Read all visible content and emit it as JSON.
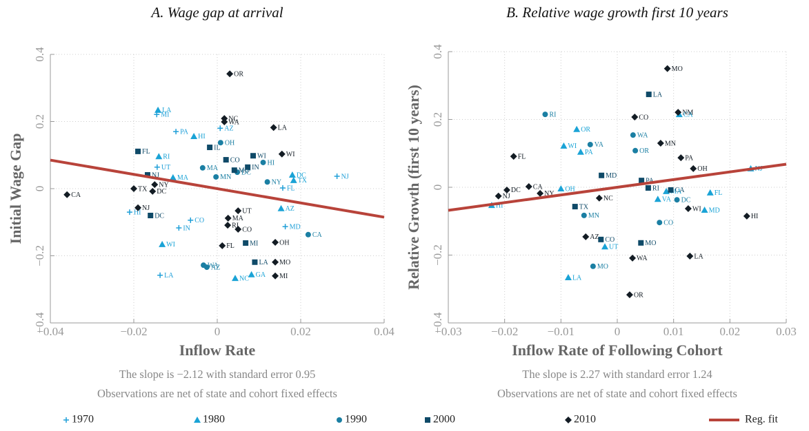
{
  "legend": [
    {
      "name": "1970",
      "color": "#1f9fd8",
      "marker": "plus"
    },
    {
      "name": "1980",
      "color": "#1aa3d6",
      "marker": "triangle"
    },
    {
      "name": "1990",
      "color": "#1b7fa3",
      "marker": "circle"
    },
    {
      "name": "2000",
      "color": "#0f4a68",
      "marker": "square"
    },
    {
      "name": "2010",
      "color": "#131c24",
      "marker": "diamond"
    },
    {
      "name": "Reg. fit",
      "color": "#b8433a",
      "marker": "line"
    }
  ],
  "chart_data": [
    {
      "type": "scatter",
      "title": "A. Wage gap at arrival",
      "xlabel": "Inflow Rate",
      "ylabel": "Initial Wage Gap",
      "notes": [
        "The slope is −2.12 with standard error 0.95",
        "Observations are net of state and cohort fixed effects"
      ],
      "xlim": [
        -0.04,
        0.04
      ],
      "ylim": [
        -0.4,
        0.4
      ],
      "xticks": [
        {
          "value": -0.04,
          "label": "−0.04"
        },
        {
          "value": -0.02,
          "label": "−0.02"
        },
        0,
        0.02,
        0.04
      ],
      "yticks": [
        {
          "value": -0.4,
          "label": "−0.4"
        },
        {
          "value": -0.2,
          "label": "−0.2"
        },
        0,
        0.2,
        0.4
      ],
      "grid": true,
      "series": [
        {
          "x": [
            -0.0145,
            -0.0099,
            0.0287,
            0.0157,
            0.0163,
            -0.0064,
            -0.0092,
            -0.0137,
            -0.021,
            -0.0144,
            0.0007
          ],
          "y": [
            0.221,
            0.17,
            0.037,
            0.002,
            -0.113,
            -0.094,
            -0.117,
            -0.258,
            -0.07,
            0.064,
            0.18
          ],
          "labels": [
            "MI",
            "PA",
            "NJ",
            "FL",
            "MD",
            "CO",
            "IN",
            "LA",
            "HI",
            "UT",
            "AZ"
          ]
        },
        {
          "x": [
            -0.0142,
            -0.014,
            -0.0056,
            -0.0132,
            0.0043,
            0.018,
            -0.0106,
            0.0183,
            0.0153,
            0.0082
          ],
          "y": [
            0.234,
            0.096,
            0.156,
            -0.166,
            -0.267,
            0.041,
            0.033,
            0.025,
            -0.059,
            -0.256
          ],
          "labels": [
            "LA",
            "RI",
            "HI",
            "WI",
            "NC",
            "DC",
            "MA",
            "TX",
            "AZ",
            "GA"
          ]
        },
        {
          "x": [
            0.011,
            0.0218,
            -0.0033,
            -0.0025,
            -0.0003,
            0.0008,
            0.012,
            -0.0035,
            0.0048
          ],
          "y": [
            0.078,
            -0.137,
            -0.228,
            -0.234,
            0.035,
            0.137,
            0.02,
            0.062,
            0.049
          ],
          "labels": [
            "HI",
            "CA",
            "WA",
            "AZ",
            "MN",
            "OH",
            "NY",
            "MA",
            "DC"
          ]
        },
        {
          "x": [
            -0.019,
            -0.0167,
            -0.016,
            0.009,
            0.0068,
            0.0073,
            0.0041,
            0.0021,
            0.0086,
            -0.0018
          ],
          "y": [
            0.111,
            0.041,
            -0.08,
            -0.219,
            -0.162,
            0.064,
            0.055,
            0.086,
            0.098,
            0.123
          ],
          "labels": [
            "FL",
            "NJ",
            "DC",
            "LA",
            "MI",
            "IN",
            "MO",
            "CO",
            "WI",
            "IL"
          ]
        },
        {
          "x": [
            -0.036,
            0.003,
            0.0017,
            0.0017,
            0.0135,
            0.0155,
            -0.02,
            -0.0155,
            -0.019,
            -0.015,
            0.0026,
            0.0025,
            0.005,
            0.0139,
            0.0139,
            0.0139,
            0.005,
            0.0012
          ],
          "y": [
            -0.018,
            0.342,
            0.209,
            0.199,
            0.182,
            0.103,
            0,
            -0.008,
            -0.057,
            0.012,
            -0.088,
            -0.109,
            -0.121,
            -0.16,
            -0.219,
            -0.26,
            -0.066,
            -0.17
          ],
          "labels": [
            "CA",
            "OR",
            "NC",
            "WA",
            "LA",
            "WI",
            "TX",
            "DC",
            "NJ",
            "NY",
            "MA",
            "RI",
            "CO",
            "OH",
            "MO",
            "MI",
            "UT",
            "FL"
          ]
        }
      ],
      "fit": {
        "x": [
          -0.04,
          0.04
        ],
        "y": [
          0.085,
          -0.085
        ]
      }
    },
    {
      "type": "scatter",
      "title": "B. Relative wage growth first 10 years",
      "xlabel": "Inflow Rate of Following Cohort",
      "ylabel": "Relative Growth (first 10 years)",
      "notes": [
        "The slope is 2.27 with standard error 1.24",
        "Observations are net of state and cohort fixed effects"
      ],
      "xlim": [
        -0.03,
        0.03
      ],
      "ylim": [
        -0.4,
        0.4
      ],
      "xticks": [
        {
          "value": -0.03,
          "label": "−0.03"
        },
        {
          "value": -0.02,
          "label": "−0.02"
        },
        {
          "value": -0.01,
          "label": "−0.01"
        },
        0,
        0.01,
        0.02,
        0.03
      ],
      "yticks": [
        {
          "value": -0.4,
          "label": "−0.4"
        },
        {
          "value": -0.2,
          "label": "−0.2"
        },
        0,
        0.2,
        0.4
      ],
      "grid": true,
      "series": [
        {
          "x": [],
          "y": [],
          "labels": []
        },
        {
          "x": [
            0.011,
            -0.0095,
            -0.0072,
            -0.0065,
            0.0165,
            0.0155,
            -0.0223,
            0.0237,
            -0.0087,
            0.0087,
            -0.0022,
            -0.01,
            0.0072
          ],
          "y": [
            0.215,
            0.122,
            0.171,
            0.104,
            -0.016,
            -0.067,
            -0.053,
            0.055,
            -0.266,
            -0.012,
            -0.175,
            -0.004,
            -0.035
          ],
          "labels": [
            "CA",
            "WI",
            "OR",
            "PA",
            "FL",
            "MD",
            "HI",
            "NJ",
            "LA",
            "MA",
            "UT",
            "OH",
            "VA"
          ]
        },
        {
          "x": [
            -0.0128,
            0.0075,
            -0.0043,
            0.0106,
            -0.0048,
            0.0028,
            0.0032,
            -0.0059
          ],
          "y": [
            0.215,
            -0.104,
            -0.233,
            -0.037,
            0.126,
            0.154,
            0.108,
            -0.083
          ],
          "labels": [
            "RI",
            "CO",
            "MO",
            "DC",
            "VA",
            "WA",
            "OR",
            "MN"
          ]
        },
        {
          "x": [
            0.0056,
            0.0095,
            0.0042,
            -0.0028,
            0.0055,
            0.0043,
            -0.0075,
            -0.0029
          ],
          "y": [
            0.274,
            -0.008,
            -0.164,
            0.035,
            -0.002,
            0.02,
            -0.057,
            -0.154
          ],
          "labels": [
            "LA",
            "CA",
            "MO",
            "MD",
            "RI",
            "PA",
            "TX",
            "CO"
          ]
        },
        {
          "x": [
            0.0089,
            0.0031,
            -0.0184,
            0.0108,
            0.0077,
            0.0113,
            0.0135,
            -0.0196,
            -0.0157,
            -0.0211,
            -0.0137,
            0.0126,
            0.023,
            0.0129,
            0.0027,
            0.0022,
            -0.0056,
            -0.0032
          ],
          "y": [
            0.35,
            0.207,
            0.091,
            0.221,
            0.13,
            0.087,
            0.055,
            -0.008,
            0.002,
            -0.026,
            -0.018,
            -0.063,
            -0.085,
            -0.203,
            -0.209,
            -0.317,
            -0.146,
            -0.032
          ],
          "labels": [
            "MO",
            "CO",
            "FL",
            "NM",
            "MN",
            "PA",
            "OH",
            "DC",
            "CA",
            "NJ",
            "NY",
            "WI",
            "HI",
            "LA",
            "WA",
            "OR",
            "AZ",
            "NC"
          ]
        }
      ],
      "fit": {
        "x": [
          -0.03,
          0.03
        ],
        "y": [
          -0.068,
          0.068
        ]
      }
    }
  ]
}
